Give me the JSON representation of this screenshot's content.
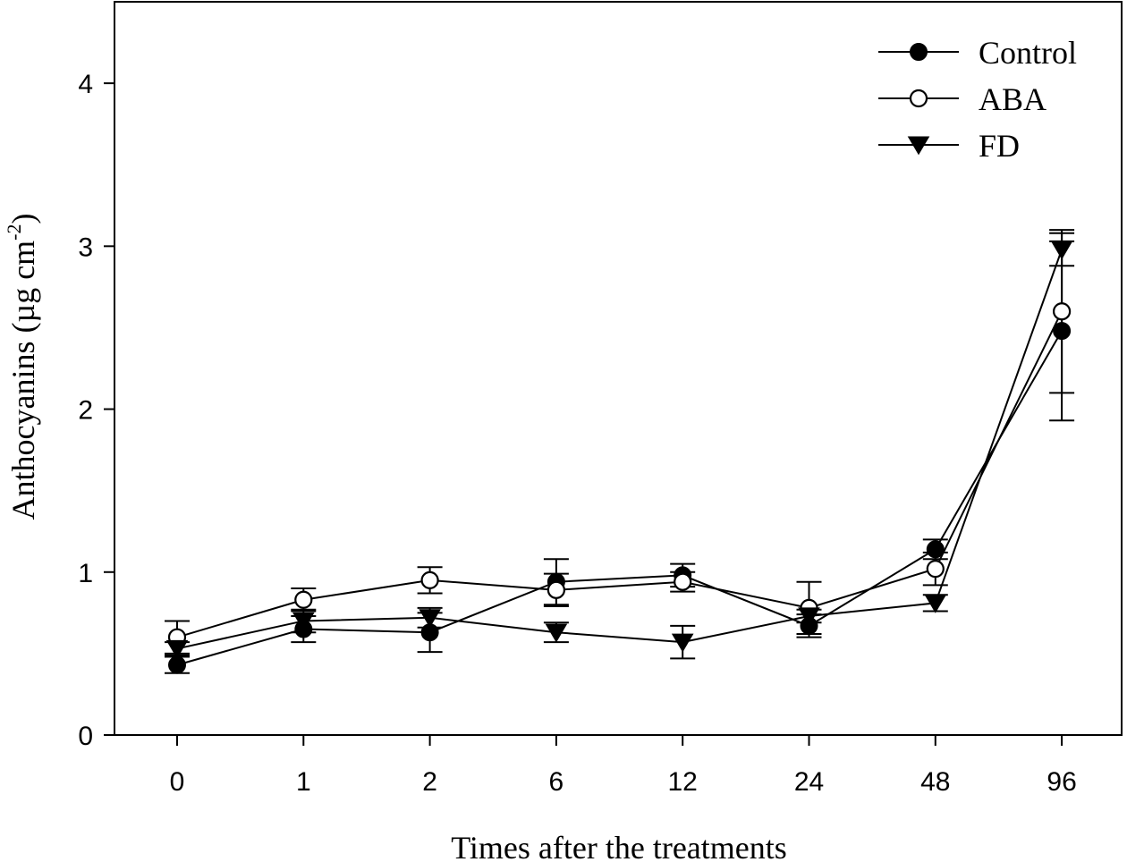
{
  "chart_data": {
    "type": "line",
    "title": "",
    "xlabel": "Times after the treatments",
    "ylabel": {
      "main": "Anthocyanins (",
      "unit": "µg cm",
      "exponent": "-2",
      "close": ")"
    },
    "categories": [
      "0",
      "1",
      "2",
      "6",
      "12",
      "24",
      "48",
      "96"
    ],
    "ylim": [
      0,
      4.5
    ],
    "yticks": [
      0,
      1,
      2,
      3,
      4
    ],
    "legend_position": "top-right",
    "series": [
      {
        "name": "Control",
        "marker": "filled-circle",
        "values": [
          0.43,
          0.65,
          0.63,
          0.94,
          0.98,
          0.67,
          1.14,
          2.48
        ],
        "errors": [
          0.05,
          0.08,
          0.12,
          0.14,
          0.07,
          0.07,
          0.06,
          0.55
        ]
      },
      {
        "name": "ABA",
        "marker": "open-circle",
        "values": [
          0.6,
          0.83,
          0.95,
          0.89,
          0.94,
          0.78,
          1.02,
          2.6
        ],
        "errors": [
          0.1,
          0.07,
          0.08,
          0.1,
          0.06,
          0.16,
          0.1,
          0.5
        ]
      },
      {
        "name": "FD",
        "marker": "filled-triangle-down",
        "values": [
          0.53,
          0.7,
          0.72,
          0.63,
          0.57,
          0.73,
          0.81,
          2.98
        ],
        "errors": [
          0.04,
          0.07,
          0.06,
          0.06,
          0.1,
          0.04,
          0.05,
          0.1
        ]
      }
    ]
  }
}
